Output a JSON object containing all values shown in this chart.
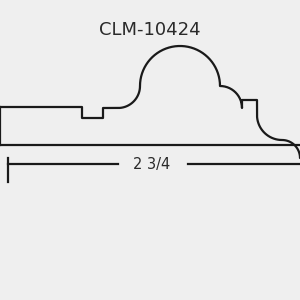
{
  "title": "CLM-10424",
  "title_fontsize": 13,
  "title_color": "#2a2a2a",
  "background_color": "#efefef",
  "line_color": "#1a1a1a",
  "line_width": 1.6,
  "dimension_text": "2 3/4",
  "dim_fontsize": 10.5
}
